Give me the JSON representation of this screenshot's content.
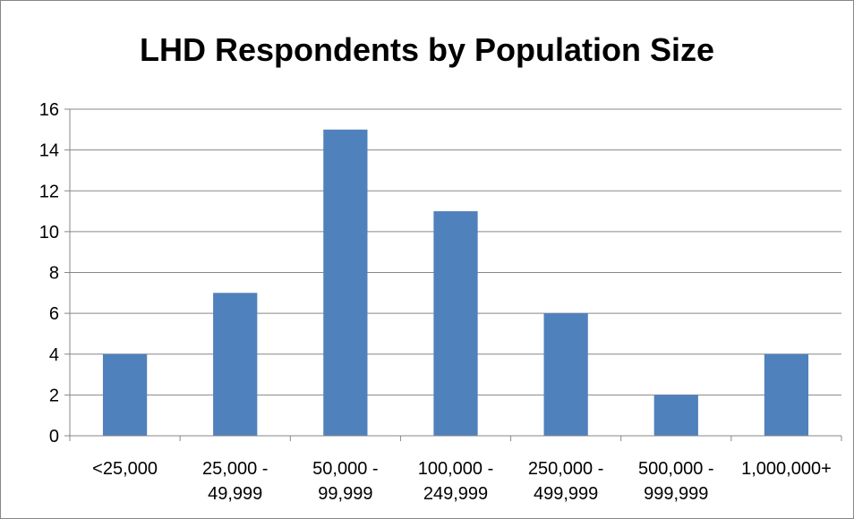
{
  "chart_data": {
    "type": "bar",
    "title": "LHD Respondents by Population Size",
    "xlabel": "",
    "ylabel": "",
    "categories": [
      [
        "<25,000"
      ],
      [
        "25,000 -",
        "49,999"
      ],
      [
        "50,000 -",
        "99,999"
      ],
      [
        "100,000 -",
        "249,999"
      ],
      [
        "250,000 -",
        "499,999"
      ],
      [
        "500,000 -",
        "999,999"
      ],
      [
        "1,000,000+"
      ]
    ],
    "values": [
      4,
      7,
      15,
      11,
      6,
      2,
      4
    ],
    "ylim": [
      0,
      16
    ],
    "yticks": [
      0,
      2,
      4,
      6,
      8,
      10,
      12,
      14,
      16
    ],
    "grid": true,
    "legend": "none",
    "bar_color": "#4f81bd",
    "grid_color": "#878787"
  }
}
